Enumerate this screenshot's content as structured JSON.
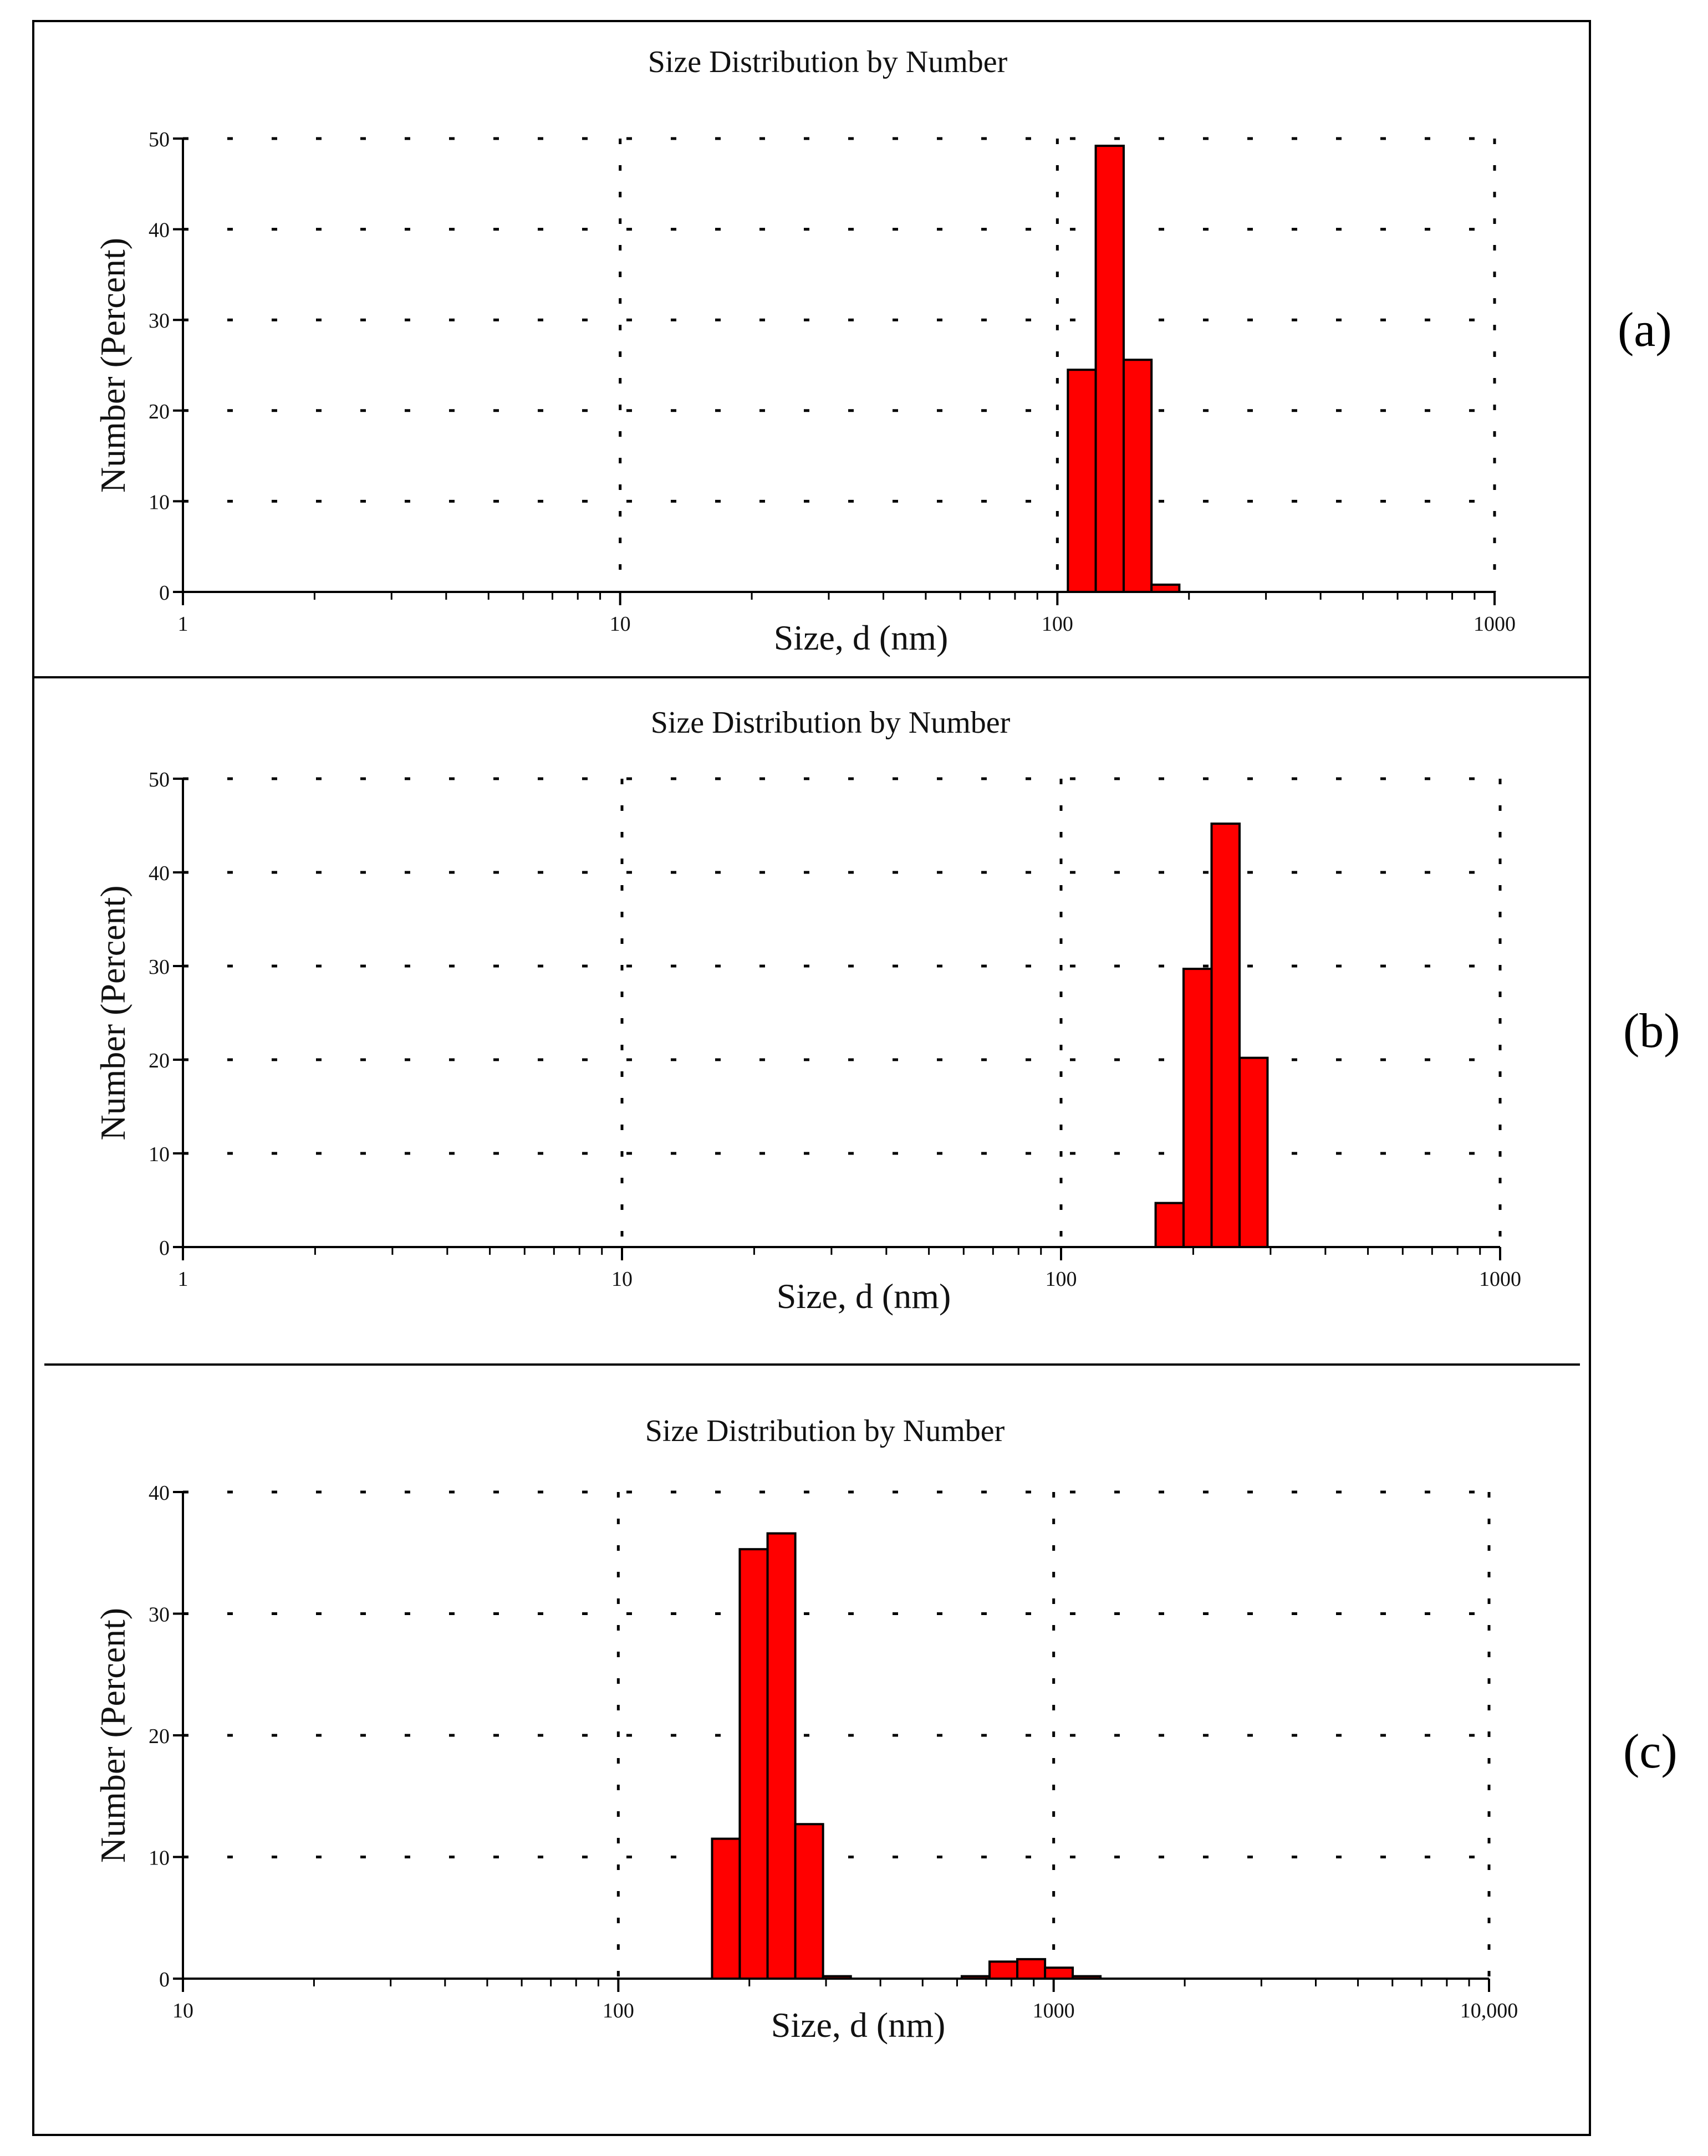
{
  "chart_data": [
    {
      "type": "bar",
      "panel_label": "(a)",
      "title": "Size Distribution by Number",
      "xlabel": "Size, d (nm)",
      "ylabel": "Number (Percent)",
      "xscale": "log",
      "xlim": [
        1,
        1000
      ],
      "ylim": [
        0,
        50
      ],
      "yticks": [
        0,
        10,
        20,
        30,
        40,
        50
      ],
      "xticks": [
        {
          "value": 1,
          "label": "1"
        },
        {
          "value": 10,
          "label": "10"
        },
        {
          "value": 100,
          "label": "100"
        },
        {
          "value": 1000,
          "label": "1000"
        }
      ],
      "grid": true,
      "color": "#ff0000",
      "bins": [
        {
          "lo": 105.7,
          "hi": 122.4,
          "value": 24.5
        },
        {
          "lo": 122.4,
          "hi": 141.8,
          "value": 49.2
        },
        {
          "lo": 141.8,
          "hi": 164.2,
          "value": 25.6
        },
        {
          "lo": 164.2,
          "hi": 190.1,
          "value": 0.8
        }
      ]
    },
    {
      "type": "bar",
      "panel_label": "(b)",
      "title": "Size Distribution by Number",
      "xlabel": "Size, d (nm)",
      "ylabel": "Number (Percent)",
      "xscale": "log",
      "xlim": [
        1,
        1000
      ],
      "ylim": [
        0,
        50
      ],
      "yticks": [
        0,
        10,
        20,
        30,
        40,
        50
      ],
      "xticks": [
        {
          "value": 1,
          "label": "1"
        },
        {
          "value": 10,
          "label": "10"
        },
        {
          "value": 100,
          "label": "100"
        },
        {
          "value": 1000,
          "label": "1000"
        }
      ],
      "grid": true,
      "color": "#ff0000",
      "bins": [
        {
          "lo": 164.2,
          "hi": 190.1,
          "value": 4.7
        },
        {
          "lo": 190.1,
          "hi": 220.2,
          "value": 29.7
        },
        {
          "lo": 220.2,
          "hi": 255.0,
          "value": 45.2
        },
        {
          "lo": 255.0,
          "hi": 295.3,
          "value": 20.2
        }
      ]
    },
    {
      "type": "bar",
      "panel_label": "(c)",
      "title": "Size Distribution by Number",
      "xlabel": "Size, d (nm)",
      "ylabel": "Number (Percent)",
      "xscale": "log",
      "xlim": [
        10,
        10000
      ],
      "ylim": [
        0,
        40
      ],
      "yticks": [
        0,
        10,
        20,
        30,
        40
      ],
      "xticks": [
        {
          "value": 10,
          "label": "10"
        },
        {
          "value": 100,
          "label": "100"
        },
        {
          "value": 1000,
          "label": "1000"
        },
        {
          "value": 10000,
          "label": "10,000"
        }
      ],
      "grid": true,
      "color": "#ff0000",
      "bins": [
        {
          "lo": 164.2,
          "hi": 190.1,
          "value": 11.5
        },
        {
          "lo": 190.1,
          "hi": 220.2,
          "value": 35.3
        },
        {
          "lo": 220.2,
          "hi": 255.0,
          "value": 36.6
        },
        {
          "lo": 255.0,
          "hi": 295.3,
          "value": 12.7
        },
        {
          "lo": 295.3,
          "hi": 342.0,
          "value": 0.2
        },
        {
          "lo": 615.1,
          "hi": 712.4,
          "value": 0.2
        },
        {
          "lo": 712.4,
          "hi": 825.0,
          "value": 1.4
        },
        {
          "lo": 825.0,
          "hi": 955.4,
          "value": 1.6
        },
        {
          "lo": 955.4,
          "hi": 1106.0,
          "value": 0.9
        },
        {
          "lo": 1106.0,
          "hi": 1281.0,
          "value": 0.2
        }
      ]
    }
  ]
}
